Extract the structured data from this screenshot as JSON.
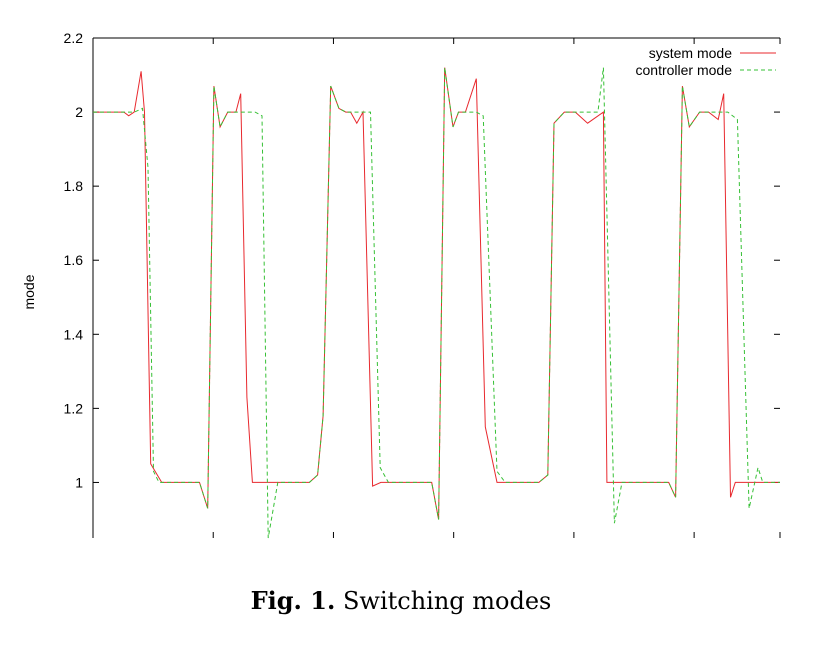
{
  "caption": {
    "label": "Fig. 1.",
    "text": "Switching modes"
  },
  "chart_data": {
    "type": "line",
    "title": "",
    "xlabel": "",
    "ylabel": "mode",
    "xlim": [
      0,
      100
    ],
    "ylim": [
      0.85,
      2.2
    ],
    "y_ticks": [
      1,
      1.2,
      1.4,
      1.6,
      1.8,
      2,
      2.2
    ],
    "y_tick_labels": [
      "1",
      "1.2",
      "1.4",
      "1.6",
      "1.8",
      "2",
      "2.2"
    ],
    "x_ticks": [
      0,
      17.5,
      35,
      52.5,
      70,
      87.5,
      100
    ],
    "grid": false,
    "legend": "top-right",
    "series": [
      {
        "name": "system mode",
        "color": "#e8292e",
        "dash": "solid",
        "x": [
          0,
          2.8,
          4.5,
          5.2,
          6.0,
          7.0,
          7.5,
          8.4,
          10.0,
          12.5,
          15.5,
          16.7,
          17.6,
          18.5,
          19.6,
          20.8,
          21.5,
          22.4,
          23.2,
          24.9,
          26.0,
          28.5,
          31.5,
          32.7,
          33.5,
          34.6,
          35.8,
          36.8,
          37.5,
          38.4,
          39.3,
          40.7,
          41.9,
          43.5,
          46.0,
          49.3,
          50.3,
          51.2,
          52.4,
          53.2,
          54.2,
          55.8,
          57.1,
          58.8,
          60.5,
          62.5,
          64.9,
          66.2,
          67.1,
          68.6,
          70.2,
          72.0,
          74.3,
          74.8,
          75.5,
          77.4,
          80.1,
          82.5,
          83.8,
          84.8,
          85.8,
          86.8,
          88.3,
          89.6,
          91.0,
          91.8,
          92.8,
          93.5,
          94.4,
          100.2
        ],
        "y": [
          2.0,
          2.0,
          2.0,
          1.99,
          2.0,
          2.11,
          2.0,
          1.05,
          1.0,
          1.0,
          1.0,
          0.93,
          2.07,
          1.96,
          2.0,
          2.0,
          2.05,
          1.23,
          1.0,
          1.0,
          1.0,
          1.0,
          1.0,
          1.02,
          1.18,
          2.07,
          2.01,
          2.0,
          2.0,
          1.97,
          2.0,
          0.99,
          1.0,
          1.0,
          1.0,
          1.0,
          0.9,
          2.12,
          1.96,
          2.0,
          2.0,
          2.09,
          1.15,
          1.0,
          1.0,
          1.0,
          1.0,
          1.02,
          1.97,
          2.0,
          2.0,
          1.97,
          2.0,
          1.0,
          1.0,
          1.0,
          1.0,
          1.0,
          1.0,
          0.96,
          2.07,
          1.96,
          2.0,
          2.0,
          1.98,
          2.05,
          0.96,
          1.0,
          1.0,
          1.0
        ]
      },
      {
        "name": "controller mode",
        "color": "#36c035",
        "dash": "dashed",
        "x": [
          0,
          2.5,
          4.5,
          6.0,
          7.2,
          8.0,
          8.8,
          9.6,
          11.0,
          13.0,
          15.5,
          16.7,
          17.6,
          18.5,
          19.6,
          20.8,
          22.0,
          23.6,
          24.6,
          25.5,
          26.9,
          30.0,
          31.5,
          32.7,
          33.5,
          34.6,
          35.8,
          36.8,
          38.5,
          40.4,
          41.8,
          43.0,
          44.5,
          49.3,
          50.3,
          51.2,
          52.4,
          53.2,
          54.2,
          55.8,
          56.8,
          58.8,
          60.0,
          62.5,
          64.9,
          66.2,
          67.1,
          68.6,
          70.2,
          72.0,
          73.5,
          74.3,
          75.9,
          77.0,
          78.0,
          80.0,
          83.8,
          84.8,
          85.8,
          86.8,
          88.3,
          89.6,
          91.0,
          92.4,
          93.8,
          95.5,
          96.8,
          97.5,
          100.2
        ],
        "y": [
          2.0,
          2.0,
          2.0,
          2.0,
          2.01,
          1.85,
          1.03,
          1.0,
          1.0,
          1.0,
          1.0,
          0.93,
          2.07,
          1.96,
          2.0,
          2.0,
          2.0,
          2.0,
          1.99,
          0.85,
          1.0,
          1.0,
          1.0,
          1.02,
          1.18,
          2.07,
          2.01,
          2.0,
          2.0,
          2.0,
          1.04,
          1.0,
          1.0,
          1.0,
          0.9,
          2.12,
          1.96,
          2.0,
          2.0,
          2.0,
          1.99,
          1.03,
          1.0,
          1.0,
          1.0,
          1.02,
          1.97,
          2.0,
          2.0,
          2.0,
          2.0,
          2.12,
          0.89,
          1.0,
          1.0,
          1.0,
          1.0,
          0.96,
          2.07,
          1.96,
          2.0,
          2.0,
          2.0,
          2.0,
          1.98,
          0.93,
          1.04,
          1.0,
          1.0
        ]
      }
    ]
  }
}
